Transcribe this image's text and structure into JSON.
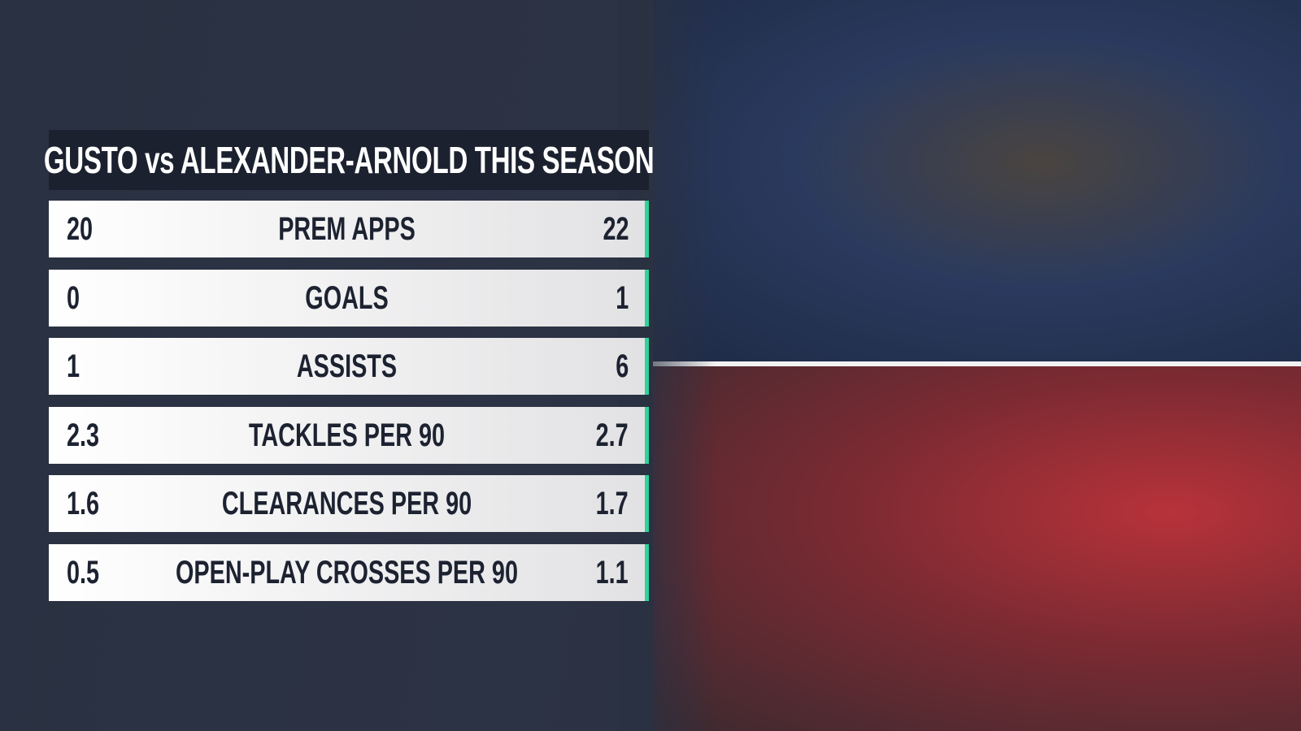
{
  "header": {
    "title": "GUSTO vs ALEXANDER-ARNOLD THIS SEASON"
  },
  "table": {
    "rows": [
      [
        "20",
        "PREM APPS",
        "22"
      ],
      [
        "0",
        "GOALS",
        "1"
      ],
      [
        "1",
        "ASSISTS",
        "6"
      ],
      [
        "2.3",
        "TACKLES PER 90",
        "2.7"
      ],
      [
        "1.6",
        "CLEARANCES PER 90",
        "1.7"
      ],
      [
        "0.5",
        "OPEN-PLAY CROSSES PER 90",
        "1.1"
      ]
    ]
  }
}
